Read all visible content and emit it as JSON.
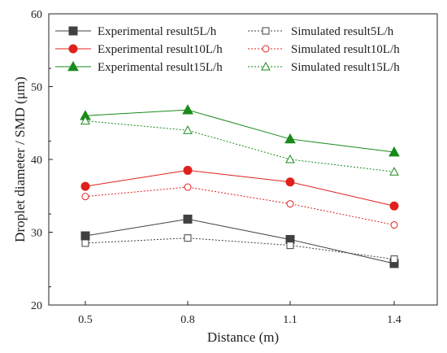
{
  "chart_data": {
    "type": "line",
    "title": "",
    "xlabel": "Distance (m)",
    "ylabel": "Droplet diameter / SMD (μm)",
    "x": [
      0.5,
      0.8,
      1.1,
      1.4
    ],
    "x_ticks": [
      "0.5",
      "0.8",
      "1.1",
      "1.4"
    ],
    "ylim": [
      20,
      60
    ],
    "y_ticks": [
      20,
      30,
      40,
      50,
      60
    ],
    "grid": false,
    "legend_position": "top",
    "series": [
      {
        "name": "Experimental result5L/h",
        "values": [
          29.5,
          31.8,
          29.0,
          25.7
        ],
        "color": "#404040",
        "marker": "square",
        "filled": true,
        "line": "solid"
      },
      {
        "name": "Experimental result10L/h",
        "values": [
          36.3,
          38.5,
          36.9,
          33.6
        ],
        "color": "#e0201d",
        "marker": "circle",
        "filled": true,
        "line": "solid"
      },
      {
        "name": "Experimental result15L/h",
        "values": [
          46.0,
          46.8,
          42.8,
          41.0
        ],
        "color": "#1a8a1a",
        "marker": "triangle",
        "filled": true,
        "line": "solid"
      },
      {
        "name": "Simulated result5L/h",
        "values": [
          28.5,
          29.2,
          28.2,
          26.3
        ],
        "color": "#404040",
        "marker": "square",
        "filled": false,
        "line": "dotted"
      },
      {
        "name": "Simulated result10L/h",
        "values": [
          34.9,
          36.2,
          33.9,
          31.0
        ],
        "color": "#e0201d",
        "marker": "circle",
        "filled": false,
        "line": "dotted"
      },
      {
        "name": "Simulated result15L/h",
        "values": [
          45.3,
          44.0,
          40.0,
          38.3
        ],
        "color": "#1a8a1a",
        "marker": "triangle",
        "filled": false,
        "line": "dotted"
      }
    ]
  }
}
